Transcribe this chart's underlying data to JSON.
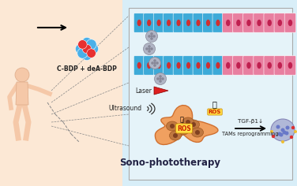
{
  "bg_left": "#fce8d5",
  "bg_right": "#d8eef8",
  "box_bg": "#e5f3f9",
  "box_border": "#aaaaaa",
  "vessel_blue": "#3daad8",
  "vessel_pink": "#e87fa0",
  "vessel_red_inner": "#d03030",
  "np_outer": "#b0b5c5",
  "np_inner": "#888898",
  "tumor_fill": "#f0a060",
  "tumor_edge": "#d07030",
  "tumor_cell": "#c07840",
  "tam_fill": "#b0b8d8",
  "tam_border": "#8888b8",
  "tam_dot": "#6878c8",
  "tam_yellow": "#f0c030",
  "tam_red": "#dd3030",
  "ros_fill": "#ffdd44",
  "ros_edge": "#cc8800",
  "ros_text": "#cc2200",
  "laser_fill": "#dd2020",
  "label_cbdp": "C-BDP + deA-BDP",
  "label_laser": "Laser",
  "label_ultrasound": "Ultrasound",
  "label_tgf": "TGF-β1↓",
  "label_tams": "TAMs reprogramming",
  "label_ros": "ROS",
  "label_sono": "Sono-phototherapy",
  "mol_blue": "#4ab0e8",
  "mol_red": "#e83030",
  "human_skin": "#f5c8a8",
  "human_edge": "#ddaa88",
  "dash_color": "#888888",
  "arrow_color": "#111111"
}
